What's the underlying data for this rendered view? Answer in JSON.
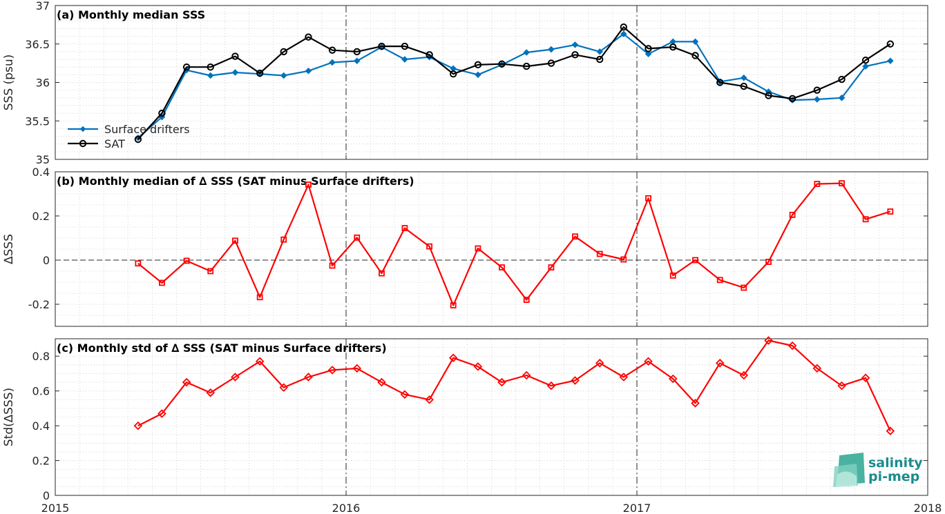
{
  "chart_data": [
    {
      "type": "line",
      "title": "(a) Monthly median SSS",
      "xlabel": "",
      "ylabel": "SSS (psu)",
      "xlim": [
        "2015-01-01",
        "2018-01-01"
      ],
      "ylim": [
        35,
        37
      ],
      "yticks": [
        "35",
        "35.5",
        "36",
        "36.5",
        "37"
      ],
      "legend_position": "bottom-left",
      "grid": "minor dotted",
      "x": [
        "2015-04-15",
        "2015-05-15",
        "2015-06-15",
        "2015-07-15",
        "2015-08-15",
        "2015-09-15",
        "2015-10-15",
        "2015-11-15",
        "2015-12-15",
        "2016-01-15",
        "2016-02-15",
        "2016-03-15",
        "2016-04-15",
        "2016-05-15",
        "2016-06-15",
        "2016-07-15",
        "2016-08-15",
        "2016-09-15",
        "2016-10-15",
        "2016-11-15",
        "2016-12-15",
        "2017-01-15",
        "2017-02-15",
        "2017-03-15",
        "2017-04-15",
        "2017-05-15",
        "2017-06-15",
        "2017-07-15",
        "2017-08-15",
        "2017-09-15",
        "2017-10-15",
        "2017-11-15"
      ],
      "series": [
        {
          "name": "Surface drifters",
          "color": "#0072bd",
          "marker": "diamond",
          "values": [
            35.28,
            35.55,
            36.16,
            36.09,
            36.13,
            36.11,
            36.09,
            36.15,
            36.26,
            36.28,
            36.46,
            36.3,
            36.33,
            36.18,
            36.1,
            36.23,
            36.39,
            36.43,
            36.49,
            36.4,
            36.63,
            36.37,
            36.53,
            36.53,
            36.01,
            36.06,
            35.88,
            35.77,
            35.78,
            35.8,
            36.21,
            36.28
          ]
        },
        {
          "name": "SAT",
          "color": "#000000",
          "marker": "circle",
          "values": [
            35.26,
            35.6,
            36.2,
            36.2,
            36.34,
            36.12,
            36.4,
            36.59,
            36.42,
            36.4,
            36.47,
            36.47,
            36.36,
            36.11,
            36.23,
            36.24,
            36.21,
            36.25,
            36.36,
            36.3,
            36.72,
            36.44,
            36.46,
            36.35,
            36.0,
            35.95,
            35.83,
            35.79,
            35.9,
            36.04,
            36.29,
            36.5
          ]
        }
      ]
    },
    {
      "type": "line",
      "title": "(b) Monthly median of ∆ SSS (SAT minus Surface drifters)",
      "xlabel": "",
      "ylabel": "∆SSS",
      "xlim": [
        "2015-01-01",
        "2018-01-01"
      ],
      "ylim": [
        -0.3,
        0.4
      ],
      "yticks": [
        "-0.2",
        "0",
        "0.2",
        "0.4"
      ],
      "grid": "minor dotted",
      "x": [
        "2015-04-15",
        "2015-05-15",
        "2015-06-15",
        "2015-07-15",
        "2015-08-15",
        "2015-09-15",
        "2015-10-15",
        "2015-11-15",
        "2015-12-15",
        "2016-01-15",
        "2016-02-15",
        "2016-03-15",
        "2016-04-15",
        "2016-05-15",
        "2016-06-15",
        "2016-07-15",
        "2016-08-15",
        "2016-09-15",
        "2016-10-15",
        "2016-11-15",
        "2016-12-15",
        "2017-01-15",
        "2017-02-15",
        "2017-03-15",
        "2017-04-15",
        "2017-05-15",
        "2017-06-15",
        "2017-07-15",
        "2017-08-15",
        "2017-09-15",
        "2017-10-15",
        "2017-11-15"
      ],
      "series": [
        {
          "color": "#ff0000",
          "marker": "square",
          "values": [
            -0.015,
            -0.103,
            -0.003,
            -0.05,
            0.088,
            -0.168,
            0.093,
            0.342,
            -0.025,
            0.102,
            -0.06,
            0.145,
            0.062,
            -0.205,
            0.053,
            -0.033,
            -0.18,
            -0.033,
            0.107,
            0.028,
            0.003,
            0.28,
            -0.07,
            0.0,
            -0.09,
            -0.125,
            -0.008,
            0.205,
            0.345,
            0.348,
            0.185,
            0.22
          ]
        }
      ]
    },
    {
      "type": "line",
      "title": "(c) Monthly std of ∆ SSS (SAT minus Surface drifters)",
      "xlabel": "",
      "ylabel": "Std(∆SSS)",
      "xlim": [
        "2015-01-01",
        "2018-01-01"
      ],
      "ylim": [
        0,
        0.9
      ],
      "yticks": [
        "0",
        "0.2",
        "0.4",
        "0.6",
        "0.8"
      ],
      "xticks": [
        "2015",
        "2016",
        "2017",
        "2018"
      ],
      "grid": "minor dotted",
      "x": [
        "2015-04-15",
        "2015-05-15",
        "2015-06-15",
        "2015-07-15",
        "2015-08-15",
        "2015-09-15",
        "2015-10-15",
        "2015-11-15",
        "2015-12-15",
        "2016-01-15",
        "2016-02-15",
        "2016-03-15",
        "2016-04-15",
        "2016-05-15",
        "2016-06-15",
        "2016-07-15",
        "2016-08-15",
        "2016-09-15",
        "2016-10-15",
        "2016-11-15",
        "2016-12-15",
        "2017-01-15",
        "2017-02-15",
        "2017-03-15",
        "2017-04-15",
        "2017-05-15",
        "2017-06-15",
        "2017-07-15",
        "2017-08-15",
        "2017-09-15",
        "2017-10-15",
        "2017-11-15"
      ],
      "series": [
        {
          "color": "#ff0000",
          "marker": "diamond",
          "values": [
            0.4,
            0.47,
            0.65,
            0.59,
            0.68,
            0.77,
            0.62,
            0.68,
            0.72,
            0.73,
            0.65,
            0.58,
            0.55,
            0.79,
            0.74,
            0.65,
            0.69,
            0.63,
            0.66,
            0.76,
            0.68,
            0.77,
            0.67,
            0.53,
            0.76,
            0.69,
            0.89,
            0.86,
            0.73,
            0.63,
            0.675,
            0.37
          ]
        }
      ]
    }
  ],
  "logo": {
    "line1": "salinity",
    "line2": "pi-mep",
    "color": "#1a8c8c"
  }
}
